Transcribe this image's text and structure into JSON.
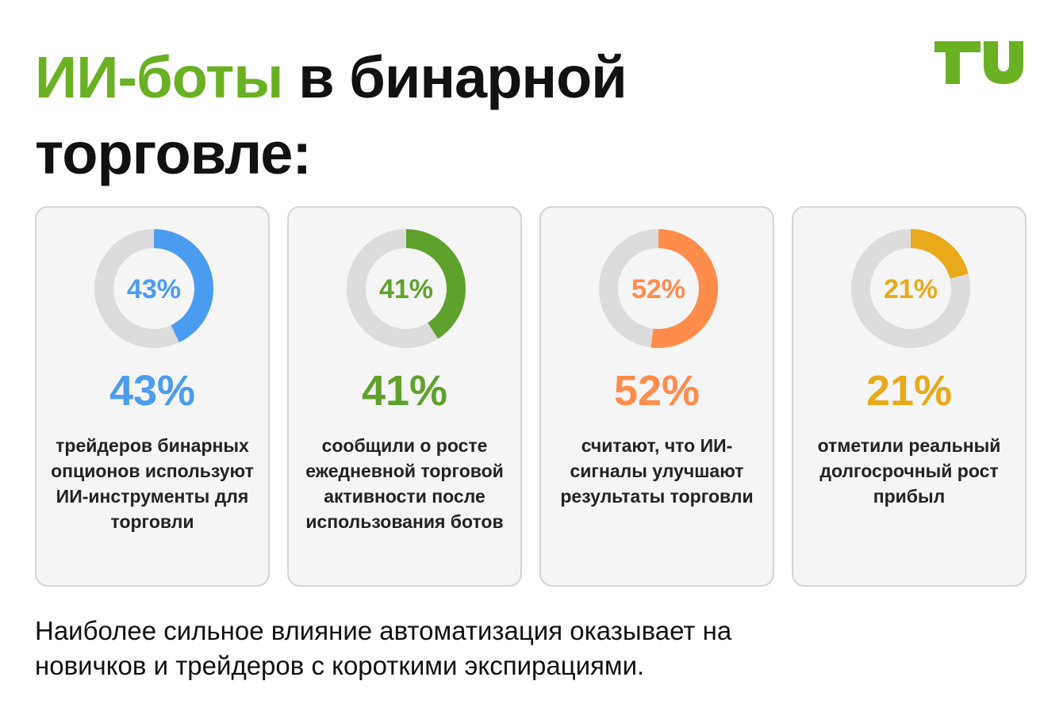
{
  "header": {
    "title_accent": "ИИ-боты",
    "title_rest_line1": " в бинарной",
    "title_line2": "торговле:",
    "logo_text": "TU"
  },
  "colors": {
    "accent_green": "#6ab023",
    "track_gray": "#dcdcdc",
    "blue": "#4a9cf0",
    "green": "#5fa12d",
    "orange": "#ff8c4a",
    "yellow": "#e8a91a"
  },
  "chart_data": {
    "type": "pie",
    "subtype": "donut",
    "items": [
      {
        "value": 43,
        "label": "43%",
        "color": "#4a9cf0",
        "description": "трейдеров бинарных опционов используют ИИ-инструменты для торговли"
      },
      {
        "value": 41,
        "label": "41%",
        "color": "#5fa12d",
        "description": "сообщили о росте ежедневной торговой активности после использования ботов"
      },
      {
        "value": 52,
        "label": "52%",
        "color": "#ff8c4a",
        "description": "считают, что ИИ-сигналы улучшают результаты торговли"
      },
      {
        "value": 21,
        "label": "21%",
        "color": "#e8a91a",
        "description": "отметили реальный долгосрочный рост прибыл"
      }
    ]
  },
  "footer": {
    "text": "Наиболее сильное влияние автоматизация оказывает на новичков и трейдеров с короткими экспирациями."
  }
}
